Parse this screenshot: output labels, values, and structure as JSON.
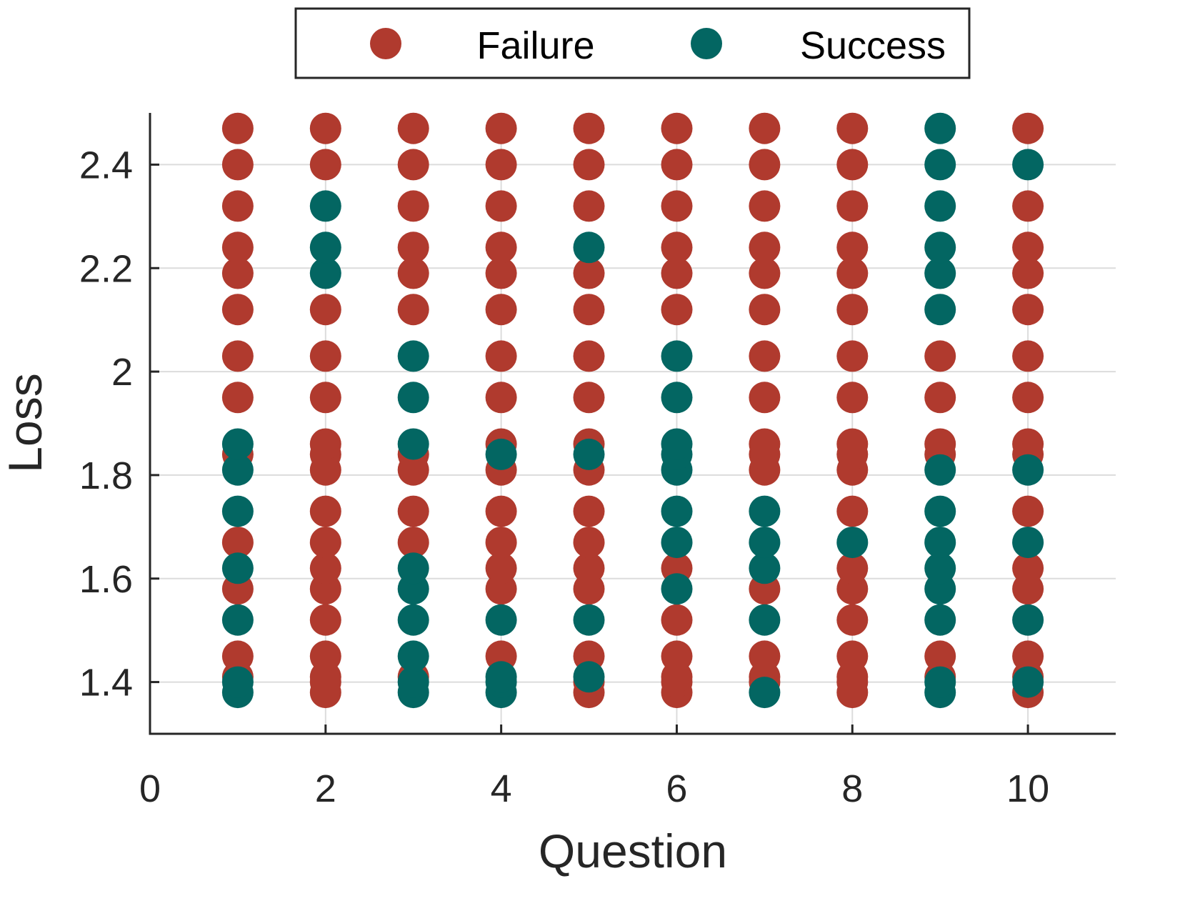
{
  "chart_data": {
    "type": "scatter",
    "title": "",
    "xlabel": "Question",
    "ylabel": "Loss",
    "xlim": [
      0,
      11
    ],
    "ylim": [
      1.3,
      2.5
    ],
    "x_ticks": [
      0,
      2,
      4,
      6,
      8,
      10
    ],
    "y_ticks": [
      1.4,
      1.6,
      1.8,
      2,
      2.2,
      2.4
    ],
    "x_tick_labels": [
      "0",
      "2",
      "4",
      "6",
      "8",
      "10"
    ],
    "y_tick_labels": [
      "1.4",
      "1.6",
      "1.8",
      "2",
      "2.2",
      "2.4"
    ],
    "grid": true,
    "legend_position": "top-center",
    "loss_levels": [
      1.38,
      1.4,
      1.41,
      1.45,
      1.52,
      1.58,
      1.62,
      1.67,
      1.73,
      1.81,
      1.84,
      1.86,
      1.95,
      2.03,
      2.12,
      2.19,
      2.24,
      2.32,
      2.4,
      2.47
    ],
    "series": [
      {
        "name": "Failure",
        "color": "#b03a2e",
        "points": [
          [
            1,
            1.41
          ],
          [
            1,
            1.45
          ],
          [
            1,
            1.58
          ],
          [
            1,
            1.67
          ],
          [
            1,
            1.84
          ],
          [
            1,
            1.95
          ],
          [
            1,
            2.03
          ],
          [
            1,
            2.12
          ],
          [
            1,
            2.19
          ],
          [
            1,
            2.24
          ],
          [
            1,
            2.32
          ],
          [
            1,
            2.4
          ],
          [
            1,
            2.47
          ],
          [
            2,
            1.38
          ],
          [
            2,
            1.4
          ],
          [
            2,
            1.41
          ],
          [
            2,
            1.45
          ],
          [
            2,
            1.52
          ],
          [
            2,
            1.58
          ],
          [
            2,
            1.62
          ],
          [
            2,
            1.67
          ],
          [
            2,
            1.73
          ],
          [
            2,
            1.81
          ],
          [
            2,
            1.84
          ],
          [
            2,
            1.86
          ],
          [
            2,
            1.95
          ],
          [
            2,
            2.03
          ],
          [
            2,
            2.12
          ],
          [
            2,
            2.4
          ],
          [
            2,
            2.47
          ],
          [
            3,
            1.41
          ],
          [
            3,
            1.67
          ],
          [
            3,
            1.73
          ],
          [
            3,
            1.81
          ],
          [
            3,
            1.84
          ],
          [
            3,
            2.12
          ],
          [
            3,
            2.19
          ],
          [
            3,
            2.24
          ],
          [
            3,
            2.32
          ],
          [
            3,
            2.4
          ],
          [
            3,
            2.47
          ],
          [
            4,
            1.45
          ],
          [
            4,
            1.58
          ],
          [
            4,
            1.62
          ],
          [
            4,
            1.67
          ],
          [
            4,
            1.73
          ],
          [
            4,
            1.81
          ],
          [
            4,
            1.86
          ],
          [
            4,
            1.95
          ],
          [
            4,
            2.03
          ],
          [
            4,
            2.12
          ],
          [
            4,
            2.19
          ],
          [
            4,
            2.24
          ],
          [
            4,
            2.32
          ],
          [
            4,
            2.4
          ],
          [
            4,
            2.47
          ],
          [
            5,
            1.38
          ],
          [
            5,
            1.4
          ],
          [
            5,
            1.45
          ],
          [
            5,
            1.58
          ],
          [
            5,
            1.62
          ],
          [
            5,
            1.67
          ],
          [
            5,
            1.73
          ],
          [
            5,
            1.81
          ],
          [
            5,
            1.86
          ],
          [
            5,
            1.95
          ],
          [
            5,
            2.03
          ],
          [
            5,
            2.12
          ],
          [
            5,
            2.19
          ],
          [
            5,
            2.32
          ],
          [
            5,
            2.4
          ],
          [
            5,
            2.47
          ],
          [
            6,
            1.38
          ],
          [
            6,
            1.4
          ],
          [
            6,
            1.41
          ],
          [
            6,
            1.45
          ],
          [
            6,
            1.52
          ],
          [
            6,
            1.62
          ],
          [
            6,
            2.12
          ],
          [
            6,
            2.19
          ],
          [
            6,
            2.24
          ],
          [
            6,
            2.32
          ],
          [
            6,
            2.4
          ],
          [
            6,
            2.47
          ],
          [
            7,
            1.4
          ],
          [
            7,
            1.41
          ],
          [
            7,
            1.45
          ],
          [
            7,
            1.58
          ],
          [
            7,
            1.81
          ],
          [
            7,
            1.84
          ],
          [
            7,
            1.86
          ],
          [
            7,
            1.95
          ],
          [
            7,
            2.03
          ],
          [
            7,
            2.12
          ],
          [
            7,
            2.19
          ],
          [
            7,
            2.24
          ],
          [
            7,
            2.32
          ],
          [
            7,
            2.4
          ],
          [
            7,
            2.47
          ],
          [
            8,
            1.38
          ],
          [
            8,
            1.4
          ],
          [
            8,
            1.41
          ],
          [
            8,
            1.45
          ],
          [
            8,
            1.52
          ],
          [
            8,
            1.58
          ],
          [
            8,
            1.62
          ],
          [
            8,
            1.73
          ],
          [
            8,
            1.81
          ],
          [
            8,
            1.84
          ],
          [
            8,
            1.86
          ],
          [
            8,
            1.95
          ],
          [
            8,
            2.03
          ],
          [
            8,
            2.12
          ],
          [
            8,
            2.19
          ],
          [
            8,
            2.24
          ],
          [
            8,
            2.32
          ],
          [
            8,
            2.4
          ],
          [
            8,
            2.47
          ],
          [
            9,
            1.41
          ],
          [
            9,
            1.45
          ],
          [
            9,
            1.84
          ],
          [
            9,
            1.86
          ],
          [
            9,
            1.95
          ],
          [
            9,
            2.03
          ],
          [
            10,
            1.38
          ],
          [
            10,
            1.41
          ],
          [
            10,
            1.45
          ],
          [
            10,
            1.58
          ],
          [
            10,
            1.62
          ],
          [
            10,
            1.73
          ],
          [
            10,
            1.84
          ],
          [
            10,
            1.86
          ],
          [
            10,
            1.95
          ],
          [
            10,
            2.03
          ],
          [
            10,
            2.12
          ],
          [
            10,
            2.19
          ],
          [
            10,
            2.24
          ],
          [
            10,
            2.32
          ],
          [
            10,
            2.47
          ]
        ]
      },
      {
        "name": "Success",
        "color": "#036662",
        "points": [
          [
            1,
            1.38
          ],
          [
            1,
            1.4
          ],
          [
            1,
            1.52
          ],
          [
            1,
            1.62
          ],
          [
            1,
            1.73
          ],
          [
            1,
            1.81
          ],
          [
            1,
            1.86
          ],
          [
            2,
            2.19
          ],
          [
            2,
            2.24
          ],
          [
            2,
            2.32
          ],
          [
            3,
            1.38
          ],
          [
            3,
            1.4
          ],
          [
            3,
            1.45
          ],
          [
            3,
            1.52
          ],
          [
            3,
            1.58
          ],
          [
            3,
            1.62
          ],
          [
            3,
            1.86
          ],
          [
            3,
            1.95
          ],
          [
            3,
            2.03
          ],
          [
            4,
            1.38
          ],
          [
            4,
            1.4
          ],
          [
            4,
            1.41
          ],
          [
            4,
            1.52
          ],
          [
            4,
            1.84
          ],
          [
            5,
            1.41
          ],
          [
            5,
            1.52
          ],
          [
            5,
            1.84
          ],
          [
            5,
            2.24
          ],
          [
            6,
            1.58
          ],
          [
            6,
            1.67
          ],
          [
            6,
            1.73
          ],
          [
            6,
            1.81
          ],
          [
            6,
            1.84
          ],
          [
            6,
            1.86
          ],
          [
            6,
            1.95
          ],
          [
            6,
            2.03
          ],
          [
            7,
            1.38
          ],
          [
            7,
            1.52
          ],
          [
            7,
            1.62
          ],
          [
            7,
            1.67
          ],
          [
            7,
            1.73
          ],
          [
            8,
            1.67
          ],
          [
            9,
            1.38
          ],
          [
            9,
            1.4
          ],
          [
            9,
            1.52
          ],
          [
            9,
            1.58
          ],
          [
            9,
            1.62
          ],
          [
            9,
            1.67
          ],
          [
            9,
            1.73
          ],
          [
            9,
            1.81
          ],
          [
            9,
            2.12
          ],
          [
            9,
            2.19
          ],
          [
            9,
            2.24
          ],
          [
            9,
            2.32
          ],
          [
            9,
            2.4
          ],
          [
            9,
            2.47
          ],
          [
            10,
            1.4
          ],
          [
            10,
            1.52
          ],
          [
            10,
            1.67
          ],
          [
            10,
            1.81
          ],
          [
            10,
            2.4
          ]
        ]
      }
    ]
  }
}
